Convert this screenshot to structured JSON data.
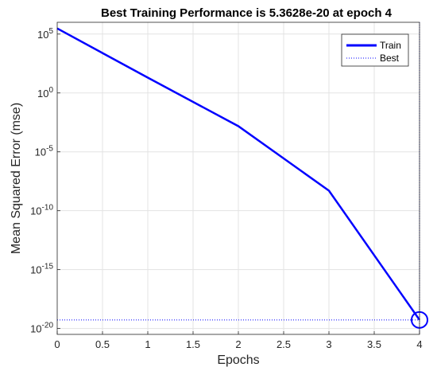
{
  "chart_data": {
    "type": "line",
    "title": "Best Training Performance is 5.3628e-20 at epoch 4",
    "xlabel": "Epochs",
    "ylabel": "Mean Squared Error  (mse)",
    "xlim": [
      0,
      4
    ],
    "ylim_log10": [
      -20.5,
      6
    ],
    "y_scale": "log",
    "xticks": [
      "0",
      "0.5",
      "1",
      "1.5",
      "2",
      "2.5",
      "3",
      "3.5",
      "4"
    ],
    "yticks": [
      {
        "base": "10",
        "exp": "5",
        "log10": 5
      },
      {
        "base": "10",
        "exp": "0",
        "log10": 0
      },
      {
        "base": "10",
        "exp": "-5",
        "log10": -5
      },
      {
        "base": "10",
        "exp": "-10",
        "log10": -10
      },
      {
        "base": "10",
        "exp": "-15",
        "log10": -15
      },
      {
        "base": "10",
        "exp": "-20",
        "log10": -20
      }
    ],
    "grid": true,
    "legend": "top-right",
    "series": [
      {
        "name": "Train",
        "color": "#0000ff",
        "x": [
          0,
          1,
          2,
          3,
          4
        ],
        "y": [
          300000.0,
          20,
          0.0015,
          5e-09,
          5.3628e-20
        ]
      }
    ],
    "best": {
      "name": "Best",
      "epoch": 4,
      "value": 5.3628e-20,
      "color": "#0000ff"
    }
  }
}
